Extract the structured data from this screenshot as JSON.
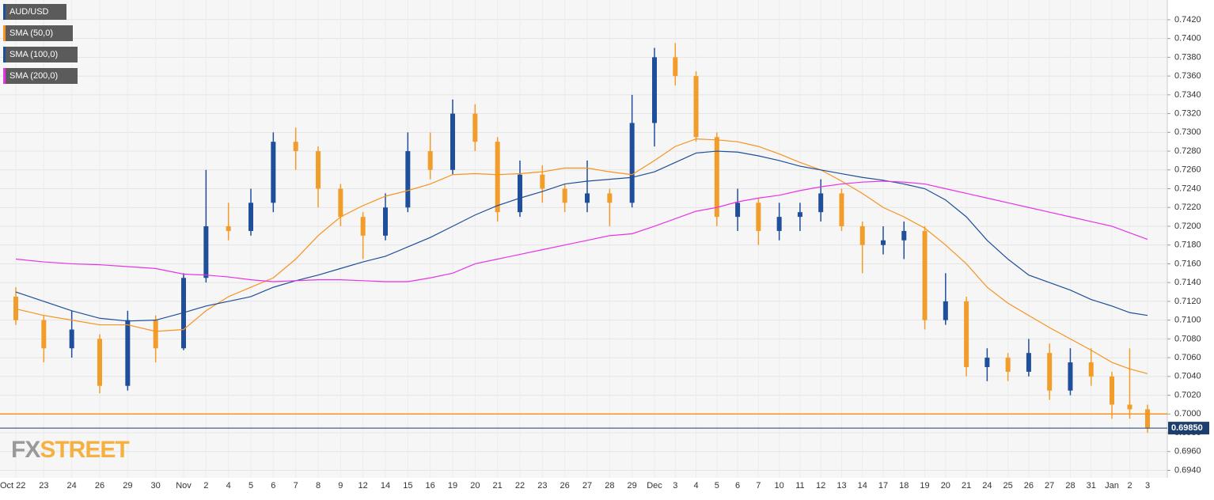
{
  "chart_data": {
    "type": "candlestick",
    "name": "AUD/USD",
    "categories": [
      "Oct 22",
      "23",
      "24",
      "26",
      "29",
      "30",
      "Nov",
      "2",
      "4",
      "5",
      "6",
      "7",
      "8",
      "9",
      "12",
      "14",
      "15",
      "16",
      "19",
      "20",
      "21",
      "22",
      "23",
      "26",
      "27",
      "28",
      "29",
      "Dec",
      "3",
      "4",
      "5",
      "6",
      "7",
      "10",
      "11",
      "12",
      "13",
      "14",
      "17",
      "18",
      "19",
      "20",
      "21",
      "24",
      "25",
      "26",
      "27",
      "28",
      "31",
      "Jan",
      "2",
      "3"
    ],
    "open": [
      0.7125,
      0.71,
      0.707,
      0.708,
      0.703,
      0.71,
      0.707,
      0.7145,
      0.72,
      0.7195,
      0.7225,
      0.729,
      0.728,
      0.724,
      0.721,
      0.719,
      0.722,
      0.728,
      0.726,
      0.732,
      0.729,
      0.7215,
      0.7255,
      0.724,
      0.7225,
      0.7235,
      0.7225,
      0.731,
      0.738,
      0.736,
      0.7295,
      0.721,
      0.7225,
      0.7195,
      0.721,
      0.7215,
      0.7235,
      0.72,
      0.718,
      0.7185,
      0.7195,
      0.71,
      0.712,
      0.705,
      0.706,
      0.7045,
      0.7065,
      0.7025,
      0.7055,
      0.704,
      0.701,
      0.7005
    ],
    "high": [
      0.7135,
      0.7105,
      0.711,
      0.7085,
      0.711,
      0.7105,
      0.715,
      0.726,
      0.7225,
      0.724,
      0.73,
      0.7305,
      0.7285,
      0.7245,
      0.7215,
      0.7235,
      0.73,
      0.73,
      0.7335,
      0.733,
      0.7295,
      0.727,
      0.7265,
      0.7245,
      0.727,
      0.724,
      0.734,
      0.739,
      0.7395,
      0.7365,
      0.73,
      0.724,
      0.723,
      0.7225,
      0.7225,
      0.725,
      0.724,
      0.7205,
      0.72,
      0.7205,
      0.72,
      0.715,
      0.7125,
      0.707,
      0.7065,
      0.708,
      0.7075,
      0.707,
      0.707,
      0.7045,
      0.707,
      0.701
    ],
    "low": [
      0.7095,
      0.7055,
      0.706,
      0.7022,
      0.7025,
      0.7055,
      0.7068,
      0.714,
      0.7185,
      0.719,
      0.7215,
      0.726,
      0.722,
      0.72,
      0.7165,
      0.7185,
      0.7215,
      0.725,
      0.7255,
      0.728,
      0.7205,
      0.721,
      0.7225,
      0.7215,
      0.7215,
      0.72,
      0.722,
      0.7285,
      0.735,
      0.729,
      0.72,
      0.7195,
      0.718,
      0.7185,
      0.7195,
      0.7205,
      0.7195,
      0.715,
      0.717,
      0.7165,
      0.709,
      0.7095,
      0.704,
      0.7035,
      0.7035,
      0.704,
      0.7015,
      0.702,
      0.703,
      0.6995,
      0.6995,
      0.698
    ],
    "close": [
      0.71,
      0.707,
      0.709,
      0.703,
      0.71,
      0.707,
      0.7145,
      0.72,
      0.7195,
      0.7225,
      0.729,
      0.728,
      0.724,
      0.721,
      0.719,
      0.722,
      0.728,
      0.726,
      0.732,
      0.729,
      0.7215,
      0.7255,
      0.724,
      0.7225,
      0.7235,
      0.7225,
      0.731,
      0.738,
      0.736,
      0.7295,
      0.721,
      0.7225,
      0.7195,
      0.721,
      0.7215,
      0.7235,
      0.72,
      0.718,
      0.7185,
      0.7195,
      0.71,
      0.712,
      0.705,
      0.706,
      0.7045,
      0.7065,
      0.7025,
      0.7055,
      0.704,
      0.701,
      0.7005,
      0.6985
    ],
    "up_color": "#1f4e9a",
    "down_color": "#f29d2a",
    "series": [
      {
        "name": "SMA (50,0)",
        "color": "#f7931e",
        "values": [
          0.7112,
          0.7105,
          0.71,
          0.7095,
          0.7095,
          0.7088,
          0.709,
          0.711,
          0.7125,
          0.7135,
          0.7145,
          0.7165,
          0.719,
          0.721,
          0.7222,
          0.7232,
          0.7238,
          0.7245,
          0.7255,
          0.7256,
          0.7255,
          0.7256,
          0.7258,
          0.7262,
          0.7262,
          0.7258,
          0.7255,
          0.727,
          0.7285,
          0.7293,
          0.7292,
          0.729,
          0.7285,
          0.7277,
          0.7268,
          0.726,
          0.7248,
          0.7235,
          0.722,
          0.721,
          0.7198,
          0.718,
          0.716,
          0.7135,
          0.7118,
          0.7105,
          0.7092,
          0.708,
          0.7068,
          0.7055,
          0.7048,
          0.7043
        ]
      },
      {
        "name": "SMA (100,0)",
        "color": "#1f4e9a",
        "values": [
          0.713,
          0.712,
          0.711,
          0.7102,
          0.7099,
          0.71,
          0.7108,
          0.7115,
          0.712,
          0.7125,
          0.7135,
          0.7142,
          0.7148,
          0.7155,
          0.7162,
          0.7168,
          0.7178,
          0.7188,
          0.72,
          0.7212,
          0.7222,
          0.723,
          0.7237,
          0.7245,
          0.7248,
          0.725,
          0.7252,
          0.7258,
          0.7268,
          0.7278,
          0.728,
          0.7279,
          0.7275,
          0.727,
          0.7264,
          0.726,
          0.7256,
          0.7252,
          0.7249,
          0.7245,
          0.724,
          0.7228,
          0.721,
          0.7185,
          0.7165,
          0.7148,
          0.714,
          0.7132,
          0.7122,
          0.7115,
          0.7108,
          0.7105
        ]
      },
      {
        "name": "SMA (200,0)",
        "color": "#e633e6",
        "values": [
          0.7165,
          0.7162,
          0.716,
          0.7159,
          0.7157,
          0.7155,
          0.7149,
          0.7148,
          0.7146,
          0.7143,
          0.7141,
          0.7142,
          0.7143,
          0.7143,
          0.7142,
          0.7141,
          0.7141,
          0.7145,
          0.715,
          0.716,
          0.7165,
          0.717,
          0.7175,
          0.718,
          0.7185,
          0.719,
          0.7192,
          0.72,
          0.7208,
          0.7216,
          0.722,
          0.7226,
          0.723,
          0.7233,
          0.7238,
          0.7242,
          0.7245,
          0.7247,
          0.7248,
          0.7247,
          0.7245,
          0.724,
          0.7235,
          0.723,
          0.7225,
          0.722,
          0.7215,
          0.721,
          0.7205,
          0.72,
          0.7193,
          0.7186
        ]
      }
    ],
    "level": 0.7,
    "level_color": "#f7931e",
    "current_price": {
      "value": 0.6985,
      "label": "0.69850"
    },
    "current_color": "#1c3f6e",
    "ylim": [
      0.6932,
      0.7441
    ],
    "yticks": [
      {
        "value": 0.694,
        "label": "0.6940"
      },
      {
        "value": 0.696,
        "label": "0.6960"
      },
      {
        "value": 0.698,
        "label": "0.6980"
      },
      {
        "value": 0.7,
        "label": "0.7000"
      },
      {
        "value": 0.702,
        "label": "0.7020"
      },
      {
        "value": 0.704,
        "label": "0.7040"
      },
      {
        "value": 0.706,
        "label": "0.7060"
      },
      {
        "value": 0.708,
        "label": "0.7080"
      },
      {
        "value": 0.71,
        "label": "0.7100"
      },
      {
        "value": 0.712,
        "label": "0.7120"
      },
      {
        "value": 0.714,
        "label": "0.7140"
      },
      {
        "value": 0.716,
        "label": "0.7160"
      },
      {
        "value": 0.718,
        "label": "0.7180"
      },
      {
        "value": 0.72,
        "label": "0.7200"
      },
      {
        "value": 0.722,
        "label": "0.7220"
      },
      {
        "value": 0.724,
        "label": "0.7240"
      },
      {
        "value": 0.726,
        "label": "0.7260"
      },
      {
        "value": 0.728,
        "label": "0.7280"
      },
      {
        "value": 0.73,
        "label": "0.7300"
      },
      {
        "value": 0.732,
        "label": "0.7320"
      },
      {
        "value": 0.734,
        "label": "0.7340"
      },
      {
        "value": 0.736,
        "label": "0.7360"
      },
      {
        "value": 0.738,
        "label": "0.7380"
      },
      {
        "value": 0.74,
        "label": "0.7400"
      },
      {
        "value": 0.742,
        "label": "0.7420"
      }
    ],
    "grid": true
  },
  "logo": {
    "part1": "FX",
    "part2": "STREET"
  }
}
